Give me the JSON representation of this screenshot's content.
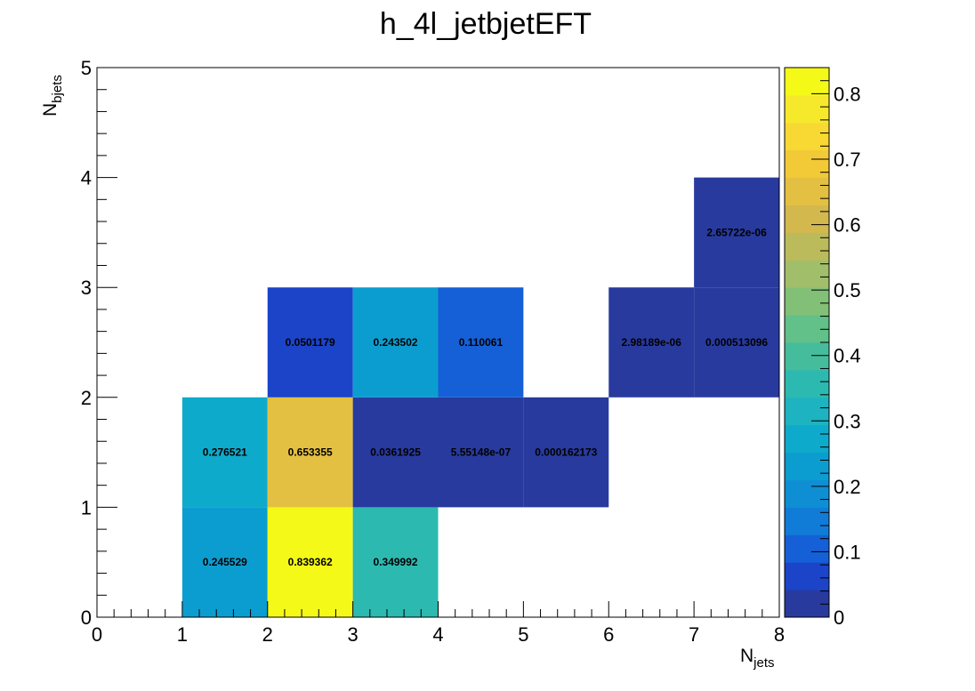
{
  "chart_data": {
    "type": "heatmap",
    "title": "h_4l_jetbjetEFT",
    "xlabel": {
      "main": "N",
      "sub": "jets"
    },
    "ylabel": {
      "main": "N",
      "sub": "bjets"
    },
    "xlim": [
      0,
      8
    ],
    "ylim": [
      0,
      5
    ],
    "x_ticks": [
      "0",
      "1",
      "2",
      "3",
      "4",
      "5",
      "6",
      "7",
      "8"
    ],
    "y_ticks": [
      "0",
      "1",
      "2",
      "3",
      "4",
      "5"
    ],
    "colorbar": {
      "range": [
        0,
        0.84
      ],
      "ticks": [
        "0",
        "0.1",
        "0.2",
        "0.3",
        "0.4",
        "0.5",
        "0.6",
        "0.7",
        "0.8"
      ],
      "palette": "kBird",
      "colors": [
        "#283a9e",
        "#1b44c8",
        "#1560d6",
        "#117cd8",
        "#0e8fd4",
        "#0c9dd0",
        "#0eaacb",
        "#1db3c0",
        "#2cb9b0",
        "#45bd9c",
        "#62c089",
        "#82c077",
        "#a1be6a",
        "#bbbb5c",
        "#d3b84e",
        "#e3c042",
        "#f2c936",
        "#f8d832",
        "#f6e92c",
        "#f5f917"
      ]
    },
    "cells": [
      {
        "x": 1,
        "y": 0,
        "value": 0.245529,
        "label": "0.245529"
      },
      {
        "x": 2,
        "y": 0,
        "value": 0.839362,
        "label": "0.839362"
      },
      {
        "x": 3,
        "y": 0,
        "value": 0.349992,
        "label": "0.349992"
      },
      {
        "x": 1,
        "y": 1,
        "value": 0.276521,
        "label": "0.276521"
      },
      {
        "x": 2,
        "y": 1,
        "value": 0.653355,
        "label": "0.653355"
      },
      {
        "x": 3,
        "y": 1,
        "value": 0.0361925,
        "label": "0.0361925"
      },
      {
        "x": 4,
        "y": 1,
        "value": 5.55148e-07,
        "label": "5.55148e-07"
      },
      {
        "x": 5,
        "y": 1,
        "value": 0.000162173,
        "label": "0.000162173"
      },
      {
        "x": 2,
        "y": 2,
        "value": 0.0501179,
        "label": "0.0501179"
      },
      {
        "x": 3,
        "y": 2,
        "value": 0.243502,
        "label": "0.243502"
      },
      {
        "x": 4,
        "y": 2,
        "value": 0.110061,
        "label": "0.110061"
      },
      {
        "x": 6,
        "y": 2,
        "value": 2.98189e-06,
        "label": "2.98189e-06"
      },
      {
        "x": 7,
        "y": 2,
        "value": 0.000513096,
        "label": "0.000513096"
      },
      {
        "x": 7,
        "y": 3,
        "value": 2.65722e-06,
        "label": "2.65722e-06"
      }
    ]
  }
}
